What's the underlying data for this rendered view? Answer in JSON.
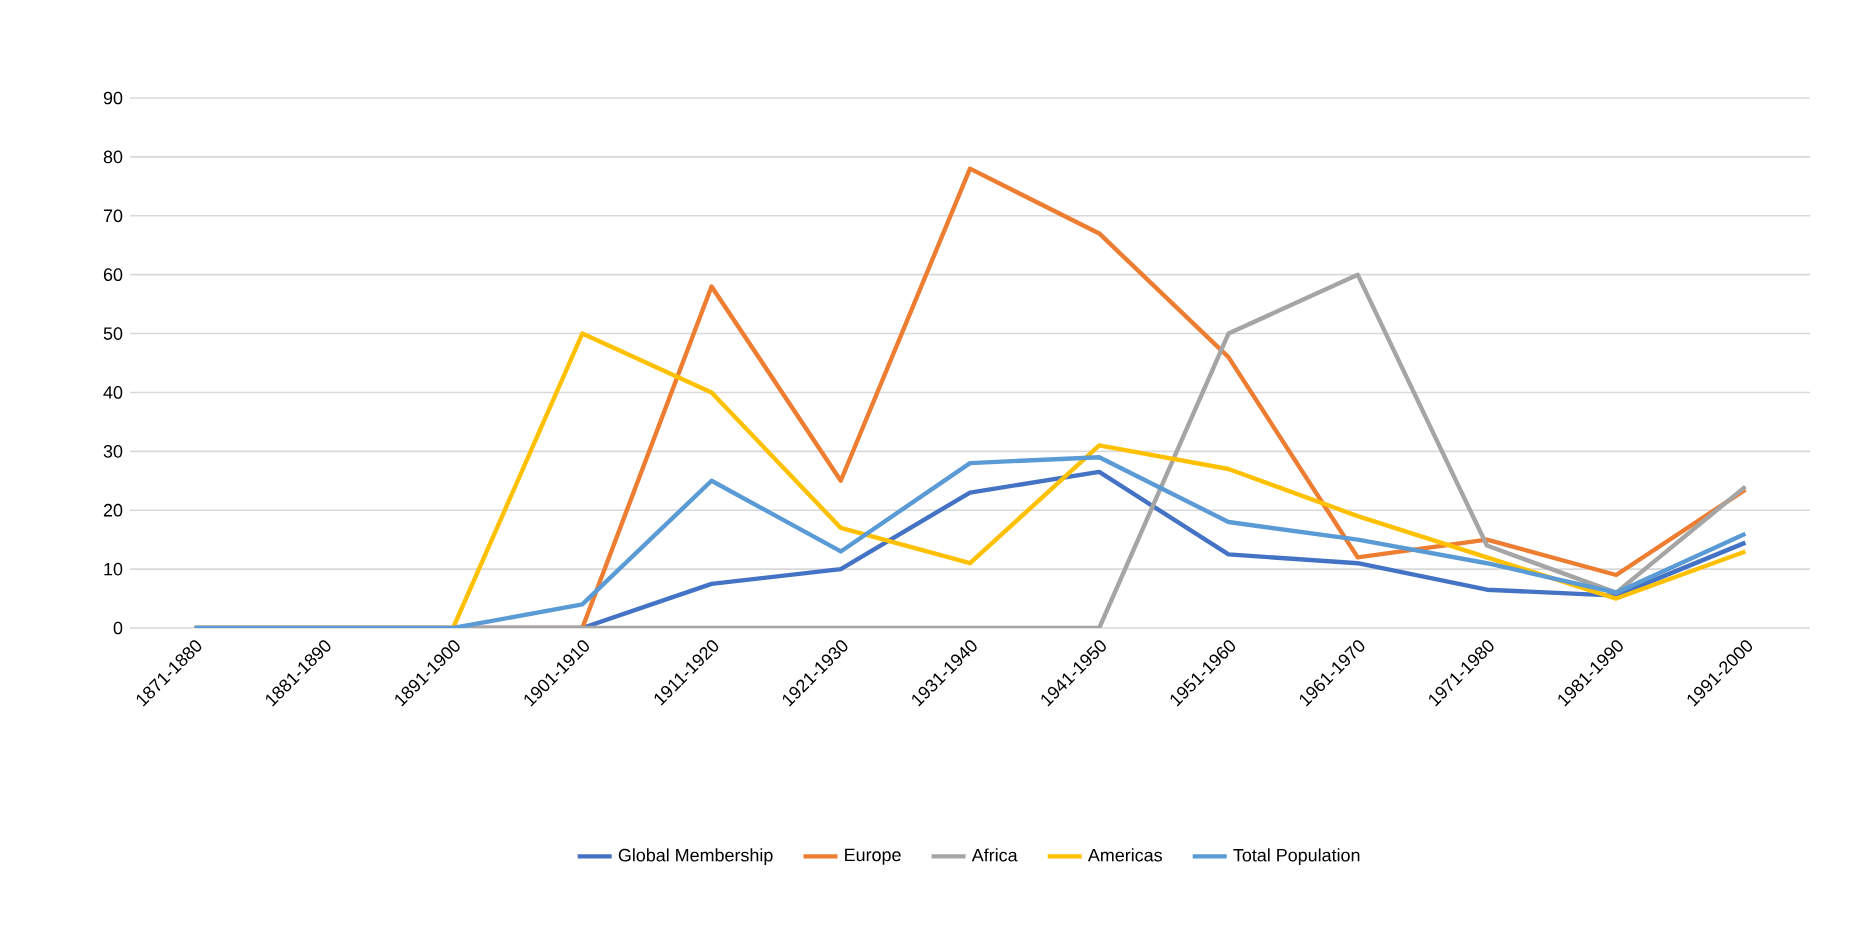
{
  "chart_data": {
    "type": "line",
    "categories": [
      "1871-1880",
      "1881-1890",
      "1891-1900",
      "1901-1910",
      "1911-1920",
      "1921-1930",
      "1931-1940",
      "1941-1950",
      "1951-1960",
      "1961-1970",
      "1971-1980",
      "1981-1990",
      "1991-2000"
    ],
    "series": [
      {
        "name": "Global Membership",
        "color": "#4472c4",
        "values": [
          0,
          0,
          0,
          0,
          7.5,
          10,
          23,
          26.5,
          12.5,
          11,
          6.5,
          5.5,
          14.5
        ]
      },
      {
        "name": "Europe",
        "color": "#ed7d31",
        "values": [
          null,
          null,
          0,
          0,
          58,
          25,
          78,
          67,
          46,
          12,
          15,
          9,
          23.5
        ]
      },
      {
        "name": "Africa",
        "color": "#a5a5a5",
        "values": [
          0,
          0,
          0,
          0,
          0,
          0,
          0,
          0,
          50,
          60,
          14,
          6,
          24
        ]
      },
      {
        "name": "Americas",
        "color": "#ffc000",
        "values": [
          0,
          0,
          0,
          50,
          40,
          17,
          11,
          31,
          27,
          19,
          12,
          5,
          13
        ]
      },
      {
        "name": "Total Population",
        "color": "#5b9bd5",
        "values": [
          0,
          0,
          0,
          4,
          25,
          13,
          28,
          29,
          18,
          15,
          11,
          6,
          16
        ]
      }
    ],
    "ylim": [
      0,
      90
    ],
    "yticks": [
      0,
      10,
      20,
      30,
      40,
      50,
      60,
      70,
      80,
      90
    ],
    "grid": "y",
    "legend": "bottom",
    "marker": "none",
    "line_style": "solid"
  }
}
